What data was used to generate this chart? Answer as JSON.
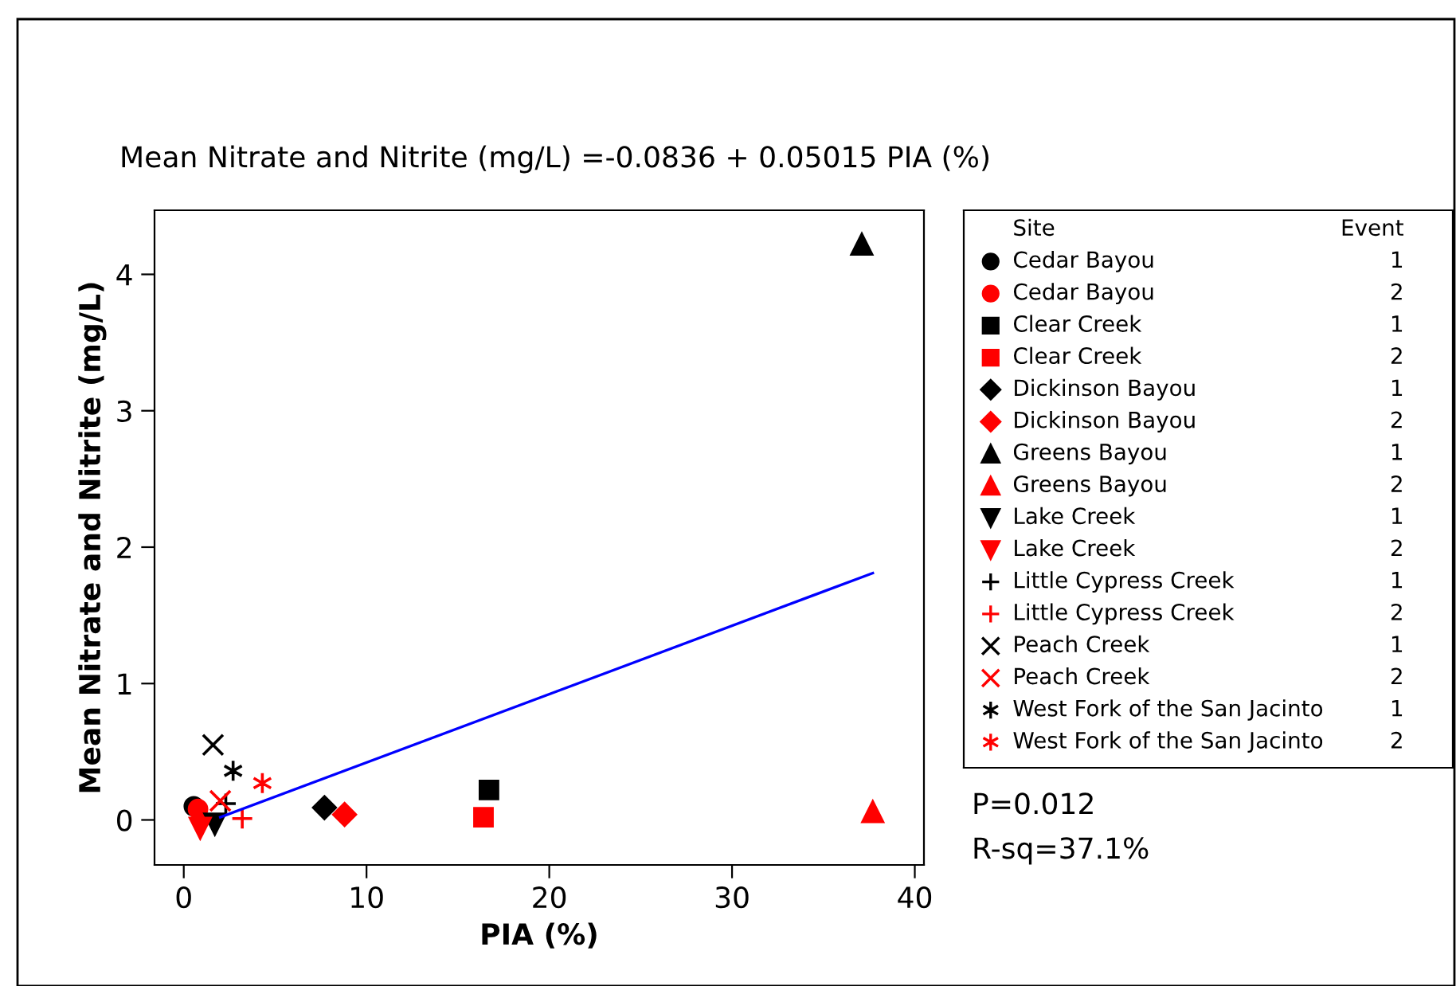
{
  "chart_data": {
    "type": "scatter",
    "title": "Mean Nitrate and Nitrite (mg/L) =-0.0836 + 0.05015 PIA (%)",
    "xlabel": "PIA (%)",
    "ylabel": "Mean Nitrate and Nitrite (mg/L)",
    "legend_title": "Site",
    "legend": "right",
    "grid": false,
    "xlim": [
      -1.6,
      40.5
    ],
    "ylim": [
      -0.33,
      4.47
    ],
    "xticks": [
      0,
      10,
      20,
      30,
      40
    ],
    "yticks": [
      0,
      1,
      2,
      3,
      4
    ],
    "series": [
      {
        "name": "Cedar Bayou",
        "color": "#000000",
        "marker": "circle",
        "x": [
          0.55
        ],
        "values": [
          0.1
        ]
      },
      {
        "name": "Cedar Bayou",
        "color": "#ff0000",
        "marker": "circle",
        "x": [
          0.78
        ],
        "values": [
          0.08
        ]
      },
      {
        "name": "Clear Creek",
        "color": "#000000",
        "marker": "square",
        "x": [
          16.7
        ],
        "values": [
          0.22
        ]
      },
      {
        "name": "Clear Creek",
        "color": "#ff0000",
        "marker": "square",
        "x": [
          16.4
        ],
        "values": [
          0.02
        ]
      },
      {
        "name": "Dickinson Bayou",
        "color": "#000000",
        "marker": "diamond",
        "x": [
          7.7
        ],
        "values": [
          0.09
        ]
      },
      {
        "name": "Dickinson Bayou",
        "color": "#ff0000",
        "marker": "diamond",
        "x": [
          8.8
        ],
        "values": [
          0.04
        ]
      },
      {
        "name": "Greens Bayou",
        "color": "#000000",
        "marker": "triangle",
        "x": [
          37.1
        ],
        "values": [
          4.22
        ]
      },
      {
        "name": "Greens Bayou",
        "color": "#ff0000",
        "marker": "triangle",
        "x": [
          37.7
        ],
        "values": [
          0.06
        ]
      },
      {
        "name": "Lake Creek",
        "color": "#000000",
        "marker": "triangle_down",
        "x": [
          1.7
        ],
        "values": [
          -0.03
        ]
      },
      {
        "name": "Lake Creek",
        "color": "#ff0000",
        "marker": "triangle_down",
        "x": [
          0.9
        ],
        "values": [
          -0.06
        ]
      },
      {
        "name": "Little Cypress Creek",
        "color": "#000000",
        "marker": "plus",
        "x": [
          2.3
        ],
        "values": [
          0.12
        ]
      },
      {
        "name": "Little Cypress Creek",
        "color": "#ff0000",
        "marker": "plus",
        "x": [
          3.2
        ],
        "values": [
          0.01
        ]
      },
      {
        "name": "Peach Creek",
        "color": "#000000",
        "marker": "x",
        "x": [
          1.6
        ],
        "values": [
          0.55
        ]
      },
      {
        "name": "Peach Creek",
        "color": "#ff0000",
        "marker": "x",
        "x": [
          2.0
        ],
        "values": [
          0.14
        ]
      },
      {
        "name": "West Fork of the San Jacinto",
        "color": "#000000",
        "marker": "cross",
        "x": [
          2.7
        ],
        "values": [
          0.36
        ]
      },
      {
        "name": "West Fork of the San Jacinto",
        "color": "#ff0000",
        "marker": "cross",
        "x": [
          4.3
        ],
        "values": [
          0.27
        ]
      },
      {
        "type": "line",
        "color": "#0000ff",
        "x": [
          2.0,
          37.7
        ],
        "values": [
          0.02,
          1.81
        ]
      }
    ],
    "annotations": [
      "Event",
      "1",
      "2",
      "1",
      "2",
      "1",
      "2",
      "1",
      "2",
      "1",
      "2",
      "1",
      "2",
      "1",
      "2",
      "1",
      "2",
      "P=0.012",
      "R-sq=37.1%"
    ]
  }
}
